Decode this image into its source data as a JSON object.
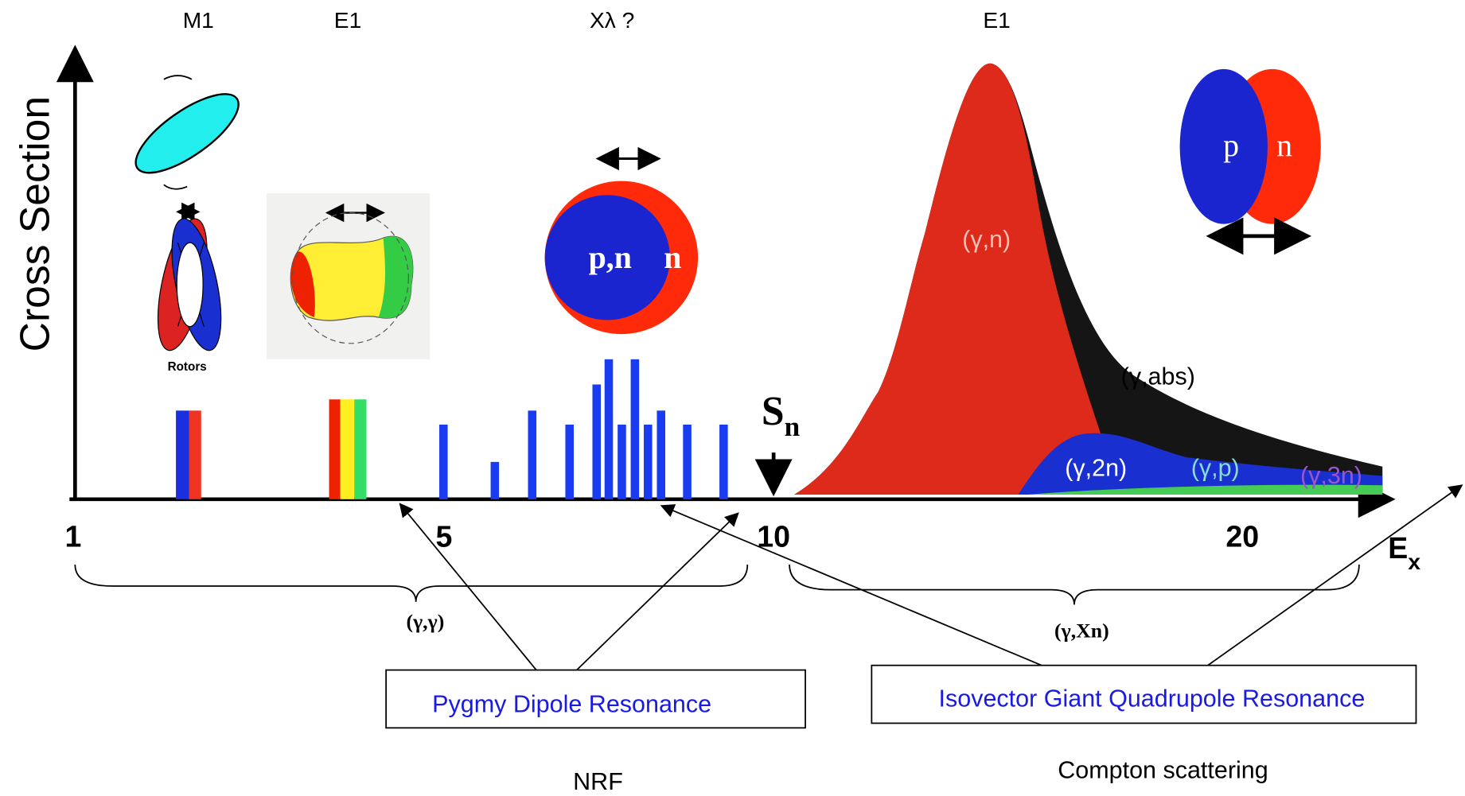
{
  "multipolarity_labels": [
    "M1",
    "E1",
    "Xλ ?",
    "E1"
  ],
  "y_axis_label": "Cross Section",
  "x_axis": {
    "ticks": [
      "1",
      "5",
      "10",
      "20"
    ],
    "label_main": "E",
    "label_sub": "x"
  },
  "threshold": {
    "main": "S",
    "sub": "n"
  },
  "shape_labels": {
    "rotors": "Rotors",
    "pn": "p,n",
    "n": "n",
    "p2": "p",
    "n2": "n"
  },
  "gdr_labels": [
    "(γ,n)",
    "(γ,abs)",
    "(γ,2n)",
    "(γ,p)",
    "(γ,3n)"
  ],
  "ranges": [
    "(γ,γ)",
    "(γ,Xn)"
  ],
  "boxes": [
    "Pygmy Dipole Resonance",
    "Isovector Giant Quadrupole  Resonance"
  ],
  "methods": [
    "NRF",
    "Compton scattering"
  ]
}
